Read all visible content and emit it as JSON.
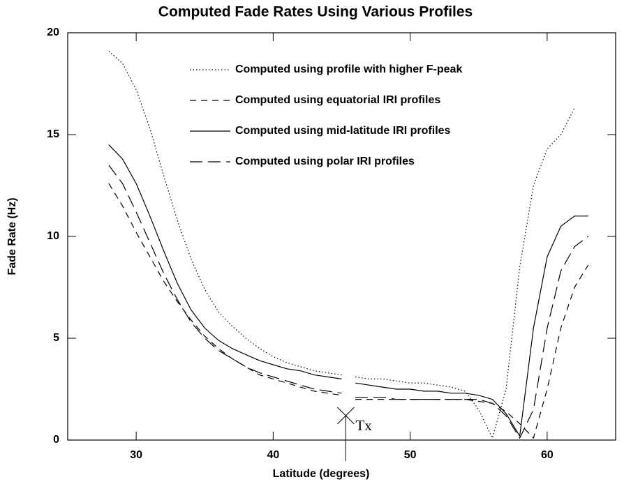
{
  "chart_data": {
    "type": "line",
    "title": "Computed Fade Rates Using Various Profiles",
    "xlabel": "Latitude (degrees)",
    "ylabel": "Fade Rate (Hz)",
    "xlim": [
      25,
      65
    ],
    "xticks": [
      30,
      40,
      50,
      60
    ],
    "ylim": [
      0,
      20
    ],
    "yticks": [
      0,
      5,
      10,
      15,
      20
    ],
    "x": [
      28,
      29,
      30,
      31,
      32,
      33,
      34,
      35,
      36,
      37,
      38,
      39,
      40,
      41,
      42,
      43,
      44,
      45,
      45.2,
      46,
      47,
      48,
      49,
      50,
      51,
      52,
      53,
      54,
      55,
      56,
      57,
      58,
      59,
      60,
      61,
      62,
      63
    ],
    "series": [
      {
        "name": "Computed using profile with higher F-peak",
        "style": "dotted",
        "color": "#000000",
        "values": [
          19.1,
          18.5,
          17.2,
          15.3,
          13.0,
          10.8,
          8.9,
          7.4,
          6.3,
          5.6,
          5.0,
          4.5,
          4.1,
          3.8,
          3.6,
          3.4,
          3.3,
          3.2,
          null,
          3.1,
          3.0,
          3.0,
          2.9,
          2.8,
          2.8,
          2.7,
          2.6,
          2.4,
          1.5,
          0.1,
          2.5,
          8.5,
          12.5,
          14.3,
          15.0,
          16.3,
          null
        ]
      },
      {
        "name": "Computed using equatorial IRI profiles",
        "style": "dashed",
        "color": "#000000",
        "values": [
          12.6,
          11.5,
          10.2,
          9.0,
          7.8,
          6.8,
          5.9,
          5.1,
          4.5,
          4.0,
          3.6,
          3.2,
          3.0,
          2.8,
          2.6,
          2.4,
          2.3,
          2.2,
          null,
          2.0,
          2.0,
          2.0,
          2.0,
          2.0,
          2.0,
          2.0,
          2.0,
          2.0,
          1.9,
          1.8,
          1.4,
          0.8,
          0.1,
          2.5,
          5.5,
          7.5,
          8.6
        ]
      },
      {
        "name": "Computed using mid-latitude IRI profiles",
        "style": "solid",
        "color": "#000000",
        "values": [
          14.5,
          13.8,
          12.6,
          11.0,
          9.3,
          7.7,
          6.4,
          5.5,
          4.9,
          4.5,
          4.2,
          3.9,
          3.7,
          3.5,
          3.4,
          3.2,
          3.1,
          3.0,
          null,
          2.8,
          2.7,
          2.6,
          2.5,
          2.5,
          2.4,
          2.4,
          2.3,
          2.3,
          2.2,
          2.0,
          1.3,
          0.2,
          5.5,
          9.0,
          10.5,
          11.0,
          11.0
        ]
      },
      {
        "name": "Computed using polar IRI profiles",
        "style": "longdash",
        "color": "#000000",
        "values": [
          13.5,
          12.6,
          11.2,
          9.7,
          8.2,
          6.9,
          5.8,
          5.0,
          4.4,
          4.0,
          3.6,
          3.3,
          3.1,
          2.9,
          2.7,
          2.5,
          2.4,
          2.3,
          null,
          2.1,
          2.1,
          2.1,
          2.0,
          2.0,
          2.0,
          2.0,
          2.0,
          2.0,
          2.0,
          1.8,
          1.2,
          0.1,
          1.5,
          5.5,
          8.3,
          9.5,
          10.0
        ]
      }
    ],
    "annotation": {
      "text": "Tx",
      "x": 45.3,
      "y": 1.2
    },
    "legend": "upper right"
  }
}
